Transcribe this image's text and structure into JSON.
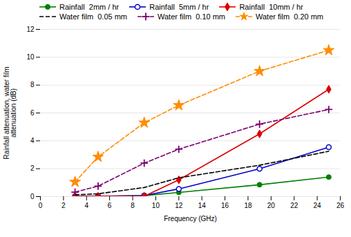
{
  "chart_data": {
    "type": "line",
    "xlabel": "Frequency (GHz)",
    "ylabel": "Rainfall attenuation, water film\nattenuation (dB)",
    "x": [
      3,
      5,
      9,
      12,
      19,
      25
    ],
    "series": [
      {
        "name": "Rainfall  2mm / hr",
        "color": "#008000",
        "marker": "circle",
        "line_style": "solid",
        "values": [
          0.02,
          0.02,
          0.07,
          0.3,
          0.85,
          1.4
        ]
      },
      {
        "name": "Rainfall  5mm / hr",
        "color": "#0000cc",
        "marker": "circle_open",
        "line_style": "solid",
        "values": [
          0.02,
          0.02,
          0.07,
          0.55,
          2.0,
          3.55
        ]
      },
      {
        "name": "Rainfall  10mm / hr",
        "color": "#dd0000",
        "marker": "diamond",
        "line_style": "solid",
        "values": [
          0.02,
          0.02,
          0.02,
          1.2,
          4.5,
          7.7
        ]
      },
      {
        "name": "Water film  0.05 mm",
        "color": "#000000",
        "marker": "none",
        "line_style": "dashed",
        "values": [
          0.12,
          0.2,
          0.65,
          1.35,
          2.25,
          3.25
        ]
      },
      {
        "name": "Water film  0.10 mm",
        "color": "#7b0070",
        "marker": "plus",
        "line_style": "dashed",
        "values": [
          0.32,
          0.75,
          2.4,
          3.4,
          5.2,
          6.25
        ]
      },
      {
        "name": "Water film  0.20 mm",
        "color": "#ff8c00",
        "marker": "star",
        "line_style": "dashed",
        "values": [
          1.05,
          2.85,
          5.3,
          6.55,
          9.0,
          10.5
        ]
      }
    ],
    "xlim": [
      0,
      26
    ],
    "ylim": [
      0,
      12
    ],
    "xticks": [
      0,
      2,
      4,
      6,
      8,
      10,
      12,
      14,
      16,
      18,
      20,
      22,
      24,
      26
    ],
    "yticks": [
      0,
      2,
      4,
      6,
      8,
      10,
      12
    ],
    "grid": "y",
    "legend": "upper left"
  }
}
